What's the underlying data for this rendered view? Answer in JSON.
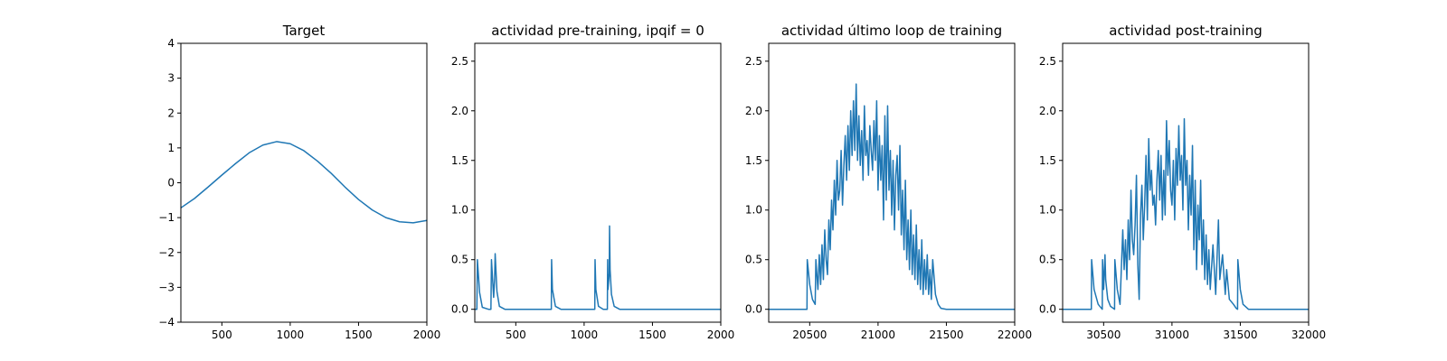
{
  "chart_data": [
    {
      "type": "line",
      "title": "Target",
      "xlabel": "",
      "ylabel": "",
      "xlim": [
        200,
        2000
      ],
      "ylim": [
        -4,
        4
      ],
      "xticks": [
        500,
        1000,
        1500,
        2000
      ],
      "yticks": [
        -4,
        -3,
        -2,
        -1,
        0,
        1,
        2,
        3,
        4
      ],
      "grid": false,
      "color": "#1f77b4",
      "series": [
        {
          "x": [
            200,
            300,
            400,
            500,
            600,
            700,
            800,
            900,
            1000,
            1100,
            1200,
            1300,
            1400,
            1500,
            1600,
            1700,
            1800,
            1900,
            2000
          ],
          "y": [
            -0.72,
            -0.45,
            -0.12,
            0.22,
            0.55,
            0.86,
            1.08,
            1.18,
            1.12,
            0.92,
            0.62,
            0.27,
            -0.12,
            -0.48,
            -0.78,
            -1.0,
            -1.12,
            -1.15,
            -1.08
          ]
        }
      ]
    },
    {
      "type": "line",
      "title": "actividad pre-training, ipqif = 0",
      "xlabel": "",
      "ylabel": "",
      "xlim": [
        200,
        2000
      ],
      "ylim": [
        -0.13,
        2.68
      ],
      "xticks": [
        500,
        1000,
        1500,
        2000
      ],
      "yticks": [
        0.0,
        0.5,
        1.0,
        1.5,
        2.0,
        2.5
      ],
      "grid": false,
      "color": "#1f77b4",
      "series": [
        {
          "x": [
            200,
            215,
            219,
            235,
            255,
            300,
            318,
            322,
            338,
            345,
            349,
            362,
            380,
            420,
            500,
            600,
            700,
            760,
            762,
            768,
            790,
            830,
            900,
            1000,
            1078,
            1080,
            1086,
            1105,
            1140,
            1170,
            1172,
            1175,
            1184,
            1186,
            1190,
            1200,
            1220,
            1260,
            1350,
            1500,
            1700,
            2000
          ],
          "y": [
            0.0,
            0.0,
            0.5,
            0.17,
            0.02,
            0.0,
            0.0,
            0.5,
            0.12,
            0.3,
            0.56,
            0.18,
            0.03,
            0.0,
            0.0,
            0.0,
            0.0,
            0.0,
            0.5,
            0.2,
            0.03,
            0.0,
            0.0,
            0.0,
            0.0,
            0.5,
            0.2,
            0.03,
            0.0,
            0.0,
            0.5,
            0.2,
            0.36,
            0.84,
            0.4,
            0.15,
            0.03,
            0.0,
            0.0,
            0.0,
            0.0,
            0.0
          ]
        }
      ]
    },
    {
      "type": "line",
      "title": "actividad último loop de training",
      "xlabel": "",
      "ylabel": "",
      "xlim": [
        20200,
        22000
      ],
      "ylim": [
        -0.13,
        2.68
      ],
      "xticks": [
        20500,
        21000,
        21500,
        22000
      ],
      "yticks": [
        0.0,
        0.5,
        1.0,
        1.5,
        2.0,
        2.5
      ],
      "grid": false,
      "color": "#1f77b4",
      "series": [
        {
          "x": [
            20200,
            20300,
            20400,
            20480,
            20482,
            20500,
            20520,
            20540,
            20545,
            20560,
            20570,
            20580,
            20590,
            20600,
            20610,
            20620,
            20630,
            20640,
            20650,
            20660,
            20670,
            20680,
            20690,
            20700,
            20710,
            20720,
            20730,
            20740,
            20750,
            20760,
            20770,
            20780,
            20790,
            20800,
            20810,
            20820,
            20830,
            20840,
            20850,
            20860,
            20870,
            20880,
            20890,
            20900,
            20910,
            20920,
            20930,
            20940,
            20950,
            20960,
            20970,
            20980,
            20990,
            21000,
            21010,
            21020,
            21030,
            21040,
            21050,
            21060,
            21070,
            21080,
            21090,
            21100,
            21110,
            21120,
            21130,
            21140,
            21150,
            21160,
            21170,
            21180,
            21190,
            21200,
            21210,
            21220,
            21230,
            21240,
            21250,
            21260,
            21270,
            21280,
            21290,
            21300,
            21310,
            21320,
            21330,
            21340,
            21350,
            21360,
            21370,
            21380,
            21390,
            21400,
            21420,
            21440,
            21460,
            21500,
            21600,
            21800,
            22000
          ],
          "y": [
            0.0,
            0.0,
            0.0,
            0.0,
            0.5,
            0.25,
            0.1,
            0.05,
            0.5,
            0.2,
            0.55,
            0.25,
            0.65,
            0.3,
            0.8,
            0.5,
            0.35,
            0.9,
            0.6,
            1.1,
            0.8,
            1.3,
            0.95,
            1.5,
            1.1,
            1.2,
            1.6,
            1.05,
            1.45,
            1.75,
            1.3,
            1.85,
            1.4,
            2.0,
            1.55,
            2.1,
            1.6,
            2.27,
            1.5,
            1.95,
            1.45,
            1.8,
            1.3,
            2.05,
            1.55,
            1.7,
            1.35,
            1.85,
            1.6,
            1.4,
            1.9,
            1.5,
            2.1,
            1.2,
            1.75,
            1.3,
            1.65,
            0.9,
            1.95,
            1.1,
            2.05,
            1.2,
            1.6,
            0.95,
            1.5,
            0.8,
            1.35,
            1.55,
            1.0,
            1.65,
            0.75,
            1.2,
            0.6,
            1.3,
            0.5,
            0.9,
            0.4,
            1.0,
            0.35,
            0.75,
            0.3,
            0.85,
            0.25,
            0.6,
            0.2,
            0.7,
            0.15,
            0.5,
            0.2,
            0.55,
            0.15,
            0.4,
            0.1,
            0.5,
            0.15,
            0.05,
            0.01,
            0.0,
            0.0,
            0.0,
            0.0
          ]
        }
      ]
    },
    {
      "type": "line",
      "title": "actividad post-training",
      "xlabel": "",
      "ylabel": "",
      "xlim": [
        30200,
        32000
      ],
      "ylim": [
        -0.13,
        2.68
      ],
      "xticks": [
        30500,
        31000,
        31500,
        32000
      ],
      "yticks": [
        0.0,
        0.5,
        1.0,
        1.5,
        2.0,
        2.5
      ],
      "grid": false,
      "color": "#1f77b4",
      "series": [
        {
          "x": [
            30200,
            30300,
            30410,
            30412,
            30430,
            30460,
            30490,
            30492,
            30500,
            30510,
            30515,
            30530,
            30550,
            30580,
            30582,
            30600,
            30620,
            30640,
            30650,
            30660,
            30670,
            30680,
            30690,
            30700,
            30710,
            30720,
            30730,
            30740,
            30750,
            30760,
            30770,
            30780,
            30790,
            30800,
            30810,
            30820,
            30830,
            30840,
            30850,
            30860,
            30870,
            30880,
            30890,
            30900,
            30910,
            30920,
            30930,
            30940,
            30950,
            30960,
            30970,
            30980,
            30990,
            31000,
            31010,
            31020,
            31030,
            31040,
            31050,
            31060,
            31070,
            31080,
            31090,
            31100,
            31110,
            31120,
            31130,
            31140,
            31150,
            31160,
            31170,
            31180,
            31190,
            31200,
            31210,
            31220,
            31230,
            31240,
            31250,
            31260,
            31270,
            31280,
            31300,
            31320,
            31340,
            31350,
            31370,
            31390,
            31400,
            31420,
            31450,
            31470,
            31480,
            31482,
            31500,
            31520,
            31560,
            31600,
            31800,
            32000
          ],
          "y": [
            0.0,
            0.0,
            0.0,
            0.5,
            0.2,
            0.05,
            0.0,
            0.5,
            0.2,
            0.55,
            0.3,
            0.1,
            0.03,
            0.0,
            0.5,
            0.2,
            0.05,
            0.8,
            0.4,
            0.7,
            0.3,
            0.9,
            0.5,
            1.2,
            0.7,
            0.55,
            0.85,
            1.35,
            0.45,
            0.1,
            0.95,
            1.25,
            0.7,
            1.05,
            1.55,
            0.9,
            1.72,
            1.2,
            1.4,
            1.05,
            1.15,
            0.85,
            1.3,
            1.6,
            1.1,
            1.55,
            0.9,
            1.4,
            0.95,
            1.9,
            1.35,
            1.7,
            1.2,
            1.05,
            1.5,
            0.9,
            1.62,
            1.25,
            1.85,
            1.3,
            1.55,
            1.0,
            1.92,
            1.25,
            1.5,
            0.8,
            1.35,
            0.95,
            1.65,
            0.6,
            1.3,
            0.4,
            1.05,
            0.7,
            1.3,
            0.45,
            0.9,
            0.3,
            0.75,
            0.25,
            0.6,
            0.2,
            0.65,
            0.15,
            0.9,
            0.3,
            0.55,
            0.15,
            0.4,
            0.1,
            0.05,
            0.01,
            0.0,
            0.5,
            0.2,
            0.05,
            0.0,
            0.0,
            0.0,
            0.0
          ]
        }
      ]
    }
  ]
}
